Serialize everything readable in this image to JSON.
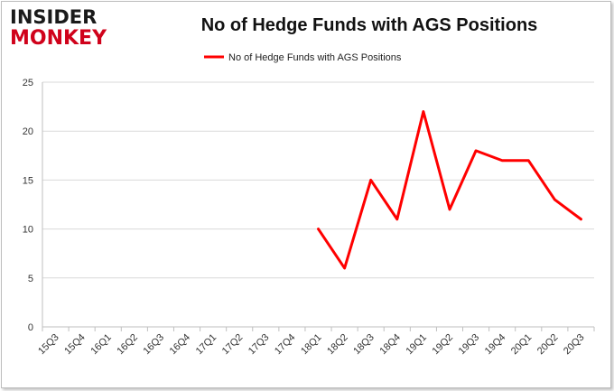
{
  "logo": {
    "line1": "INSIDER",
    "line2": "MONKEY"
  },
  "colors": {
    "series": "#ff0000",
    "grid": "#d9d9d9",
    "logo_red": "#d0021b"
  },
  "chart_data": {
    "type": "line",
    "title": "No of Hedge Funds with AGS Positions",
    "xlabel": "",
    "ylabel": "",
    "categories": [
      "15Q3",
      "15Q4",
      "16Q1",
      "16Q2",
      "16Q3",
      "16Q4",
      "17Q1",
      "17Q2",
      "17Q3",
      "17Q4",
      "18Q1",
      "18Q2",
      "18Q3",
      "18Q4",
      "19Q1",
      "19Q2",
      "19Q3",
      "19Q4",
      "20Q1",
      "20Q2",
      "20Q3"
    ],
    "series": [
      {
        "name": "No of Hedge Funds with AGS Positions",
        "values": [
          null,
          null,
          null,
          null,
          null,
          null,
          null,
          null,
          null,
          null,
          10,
          6,
          15,
          11,
          22,
          12,
          18,
          17,
          17,
          13,
          11
        ]
      }
    ],
    "ylim": [
      0,
      25
    ],
    "yticks": [
      0,
      5,
      10,
      15,
      20,
      25
    ],
    "grid": true,
    "legend": "top-center"
  }
}
